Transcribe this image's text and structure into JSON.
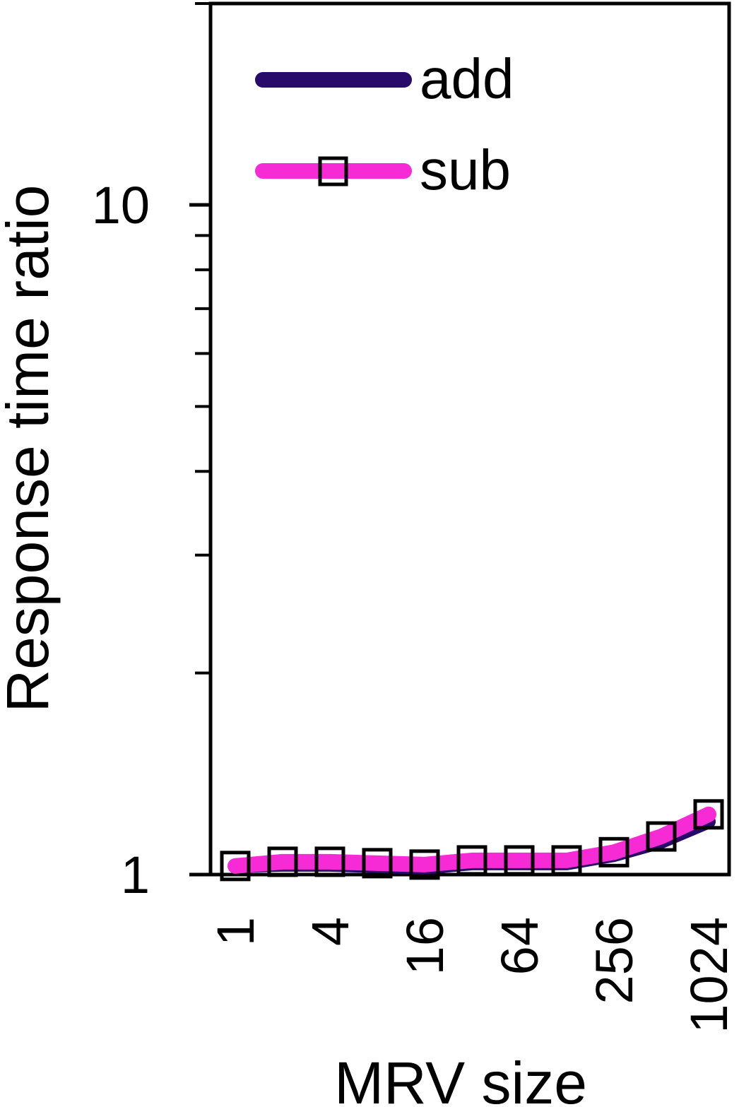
{
  "chart_data": {
    "type": "line",
    "xlabel": "MRV size",
    "ylabel": "Response time ratio",
    "x_scale": "log2",
    "y_scale": "log10",
    "x": [
      1,
      2,
      4,
      8,
      16,
      32,
      64,
      128,
      256,
      512,
      1024
    ],
    "xticks": [
      1,
      4,
      16,
      64,
      256,
      1024
    ],
    "xlim": [
      1,
      1024
    ],
    "ylim": [
      1,
      20
    ],
    "yticks_labeled": [
      1,
      10
    ],
    "series": [
      {
        "name": "add",
        "color": "#280a6a",
        "marker": "none",
        "values": [
          1.03,
          1.035,
          1.035,
          1.03,
          1.025,
          1.04,
          1.04,
          1.04,
          1.07,
          1.12,
          1.2
        ]
      },
      {
        "name": "sub",
        "color": "#f72bd6",
        "marker": "square",
        "values": [
          1.03,
          1.045,
          1.045,
          1.04,
          1.035,
          1.05,
          1.05,
          1.05,
          1.08,
          1.14,
          1.23
        ]
      }
    ],
    "legend": {
      "position": "top-left",
      "entries": [
        "add",
        "sub"
      ]
    },
    "grid": false
  }
}
